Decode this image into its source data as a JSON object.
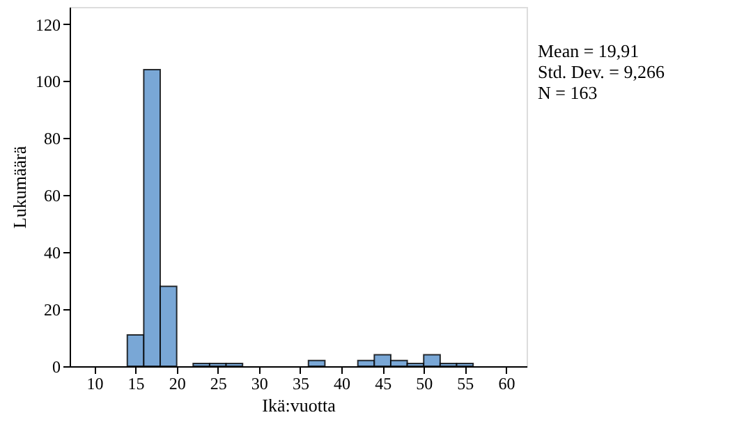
{
  "chart_data": {
    "type": "histogram",
    "bins": [
      14,
      16,
      18,
      20,
      22,
      24,
      26,
      28,
      30,
      32,
      34,
      36,
      38,
      40,
      42,
      44,
      46,
      48,
      50,
      52,
      54,
      56
    ],
    "values": [
      11,
      104,
      28,
      0,
      1,
      1,
      1,
      0,
      0,
      0,
      0,
      2,
      0,
      0,
      2,
      4,
      2,
      1,
      4,
      1,
      1
    ],
    "color": "#79a7d6",
    "xlabel": "Ikä:vuotta",
    "ylabel": "Lukumäärä",
    "xlim": [
      7,
      62.5
    ],
    "xticks": [
      10,
      15,
      20,
      25,
      30,
      35,
      40,
      45,
      50,
      55,
      60
    ],
    "ylim": [
      0,
      126
    ],
    "yticks": [
      0,
      20,
      40,
      60,
      80,
      100,
      120
    ],
    "grid": false,
    "annotations": [
      "Mean = 19,91",
      "Std. Dev. = 9,266",
      "N = 163"
    ]
  }
}
